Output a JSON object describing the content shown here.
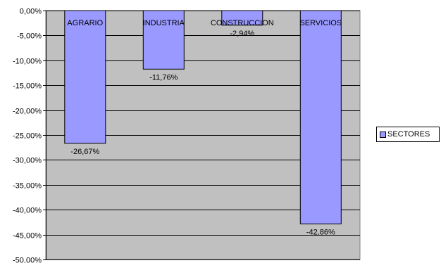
{
  "chart_data": {
    "type": "bar",
    "categories": [
      "AGRARIO",
      "INDUSTRIA",
      "CONSTRUCCION",
      "SERVICIOS"
    ],
    "series": [
      {
        "name": "SECTORES",
        "values": [
          -26.67,
          -11.76,
          -2.94,
          -42.86
        ],
        "data_labels": [
          "-26,67%",
          "-11,76%",
          "-2,94%",
          "-42,86%"
        ]
      }
    ],
    "ylim": [
      -50,
      0
    ],
    "ytick_values": [
      0,
      -5,
      -10,
      -15,
      -20,
      -25,
      -30,
      -35,
      -40,
      -45,
      -50
    ],
    "ytick_labels": [
      "0,00%",
      "-5,00%",
      "-10,00%",
      "-15,00%",
      "-20,00%",
      "-25,00%",
      "-30,00%",
      "-35,00%",
      "-40,00%",
      "-45,00%",
      "-50,00%"
    ],
    "grid": true,
    "legend_position": "right",
    "colors": {
      "plot_area": "#c0c0c0",
      "bar_fill": "#9999ff",
      "bar_stroke": "#000000",
      "gridline": "#000000"
    }
  }
}
